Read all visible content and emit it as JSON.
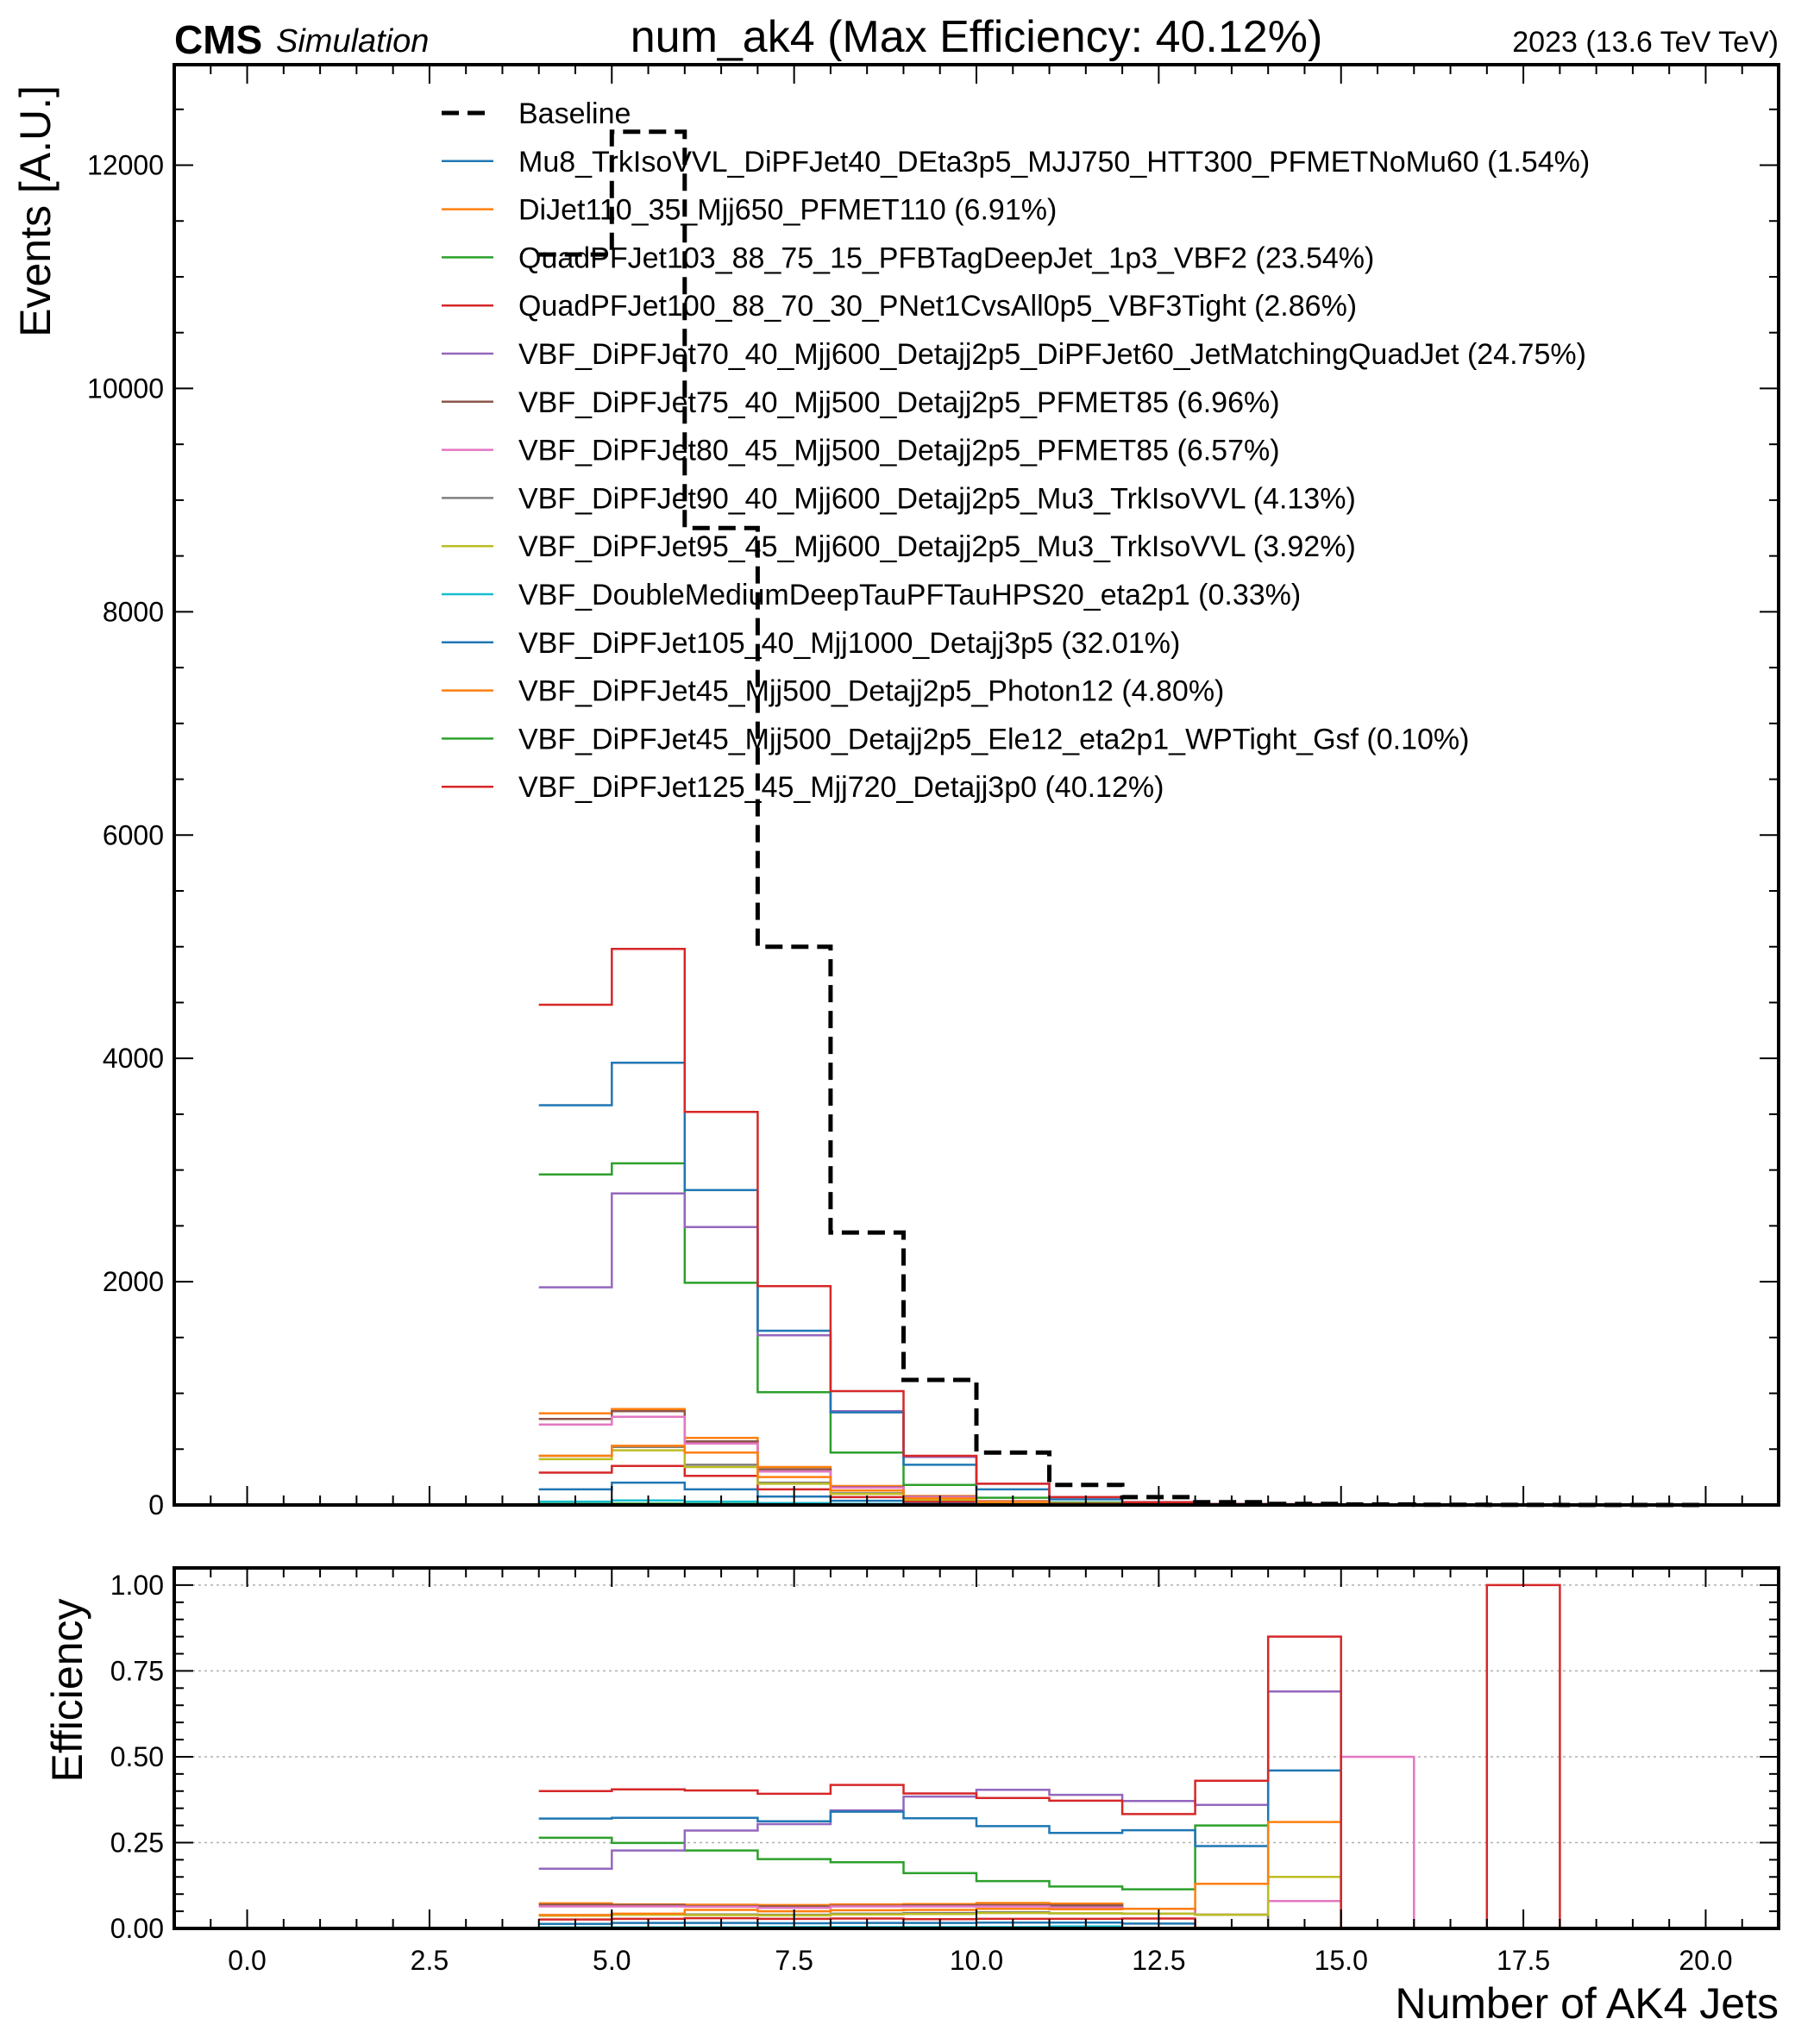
{
  "header": {
    "cms": "CMS",
    "simulation": "Simulation",
    "title": "num_ak4 (Max Efficiency: 40.12%)",
    "energy": "2023 (13.6 TeV TeV)"
  },
  "chart_data": [
    {
      "type": "step",
      "ylabel": "Events [A.U.]",
      "xlim": [
        -1,
        21
      ],
      "ylim": [
        0,
        12900
      ],
      "yticks": [
        0,
        2000,
        4000,
        6000,
        8000,
        10000,
        12000
      ],
      "ytick_labels": [
        "0",
        "2000",
        "4000",
        "6000",
        "8000",
        "10000",
        "12000"
      ],
      "bin_edges": [
        4,
        5,
        6,
        7,
        8,
        9,
        10,
        11,
        12,
        13,
        14,
        15,
        16,
        17,
        18,
        19,
        20
      ],
      "legend_placement": "top-center",
      "baseline": {
        "name": "Baseline",
        "color": "#000000",
        "values": [
          11200,
          12300,
          8750,
          5000,
          2440,
          1120,
          470,
          180,
          70,
          25,
          10,
          5,
          2,
          1,
          0,
          0
        ]
      },
      "series": [
        {
          "name": "Mu8_TrkIsoVVL_DiPFJet40_DEta3p5_MJJ750_HTT300_PFMETNoMu60 (1.54%)",
          "color": "#1f77b4",
          "values": [
            140,
            200,
            140,
            75,
            38,
            18,
            8,
            3,
            1,
            0,
            0,
            0,
            0,
            0,
            0,
            0
          ]
        },
        {
          "name": "DiJet110_35_Mjj650_PFMET110 (6.91%)",
          "color": "#ff7f0e",
          "values": [
            820,
            860,
            600,
            340,
            170,
            80,
            35,
            13,
            4,
            1,
            0,
            0,
            0,
            0,
            0,
            0
          ]
        },
        {
          "name": "QuadPFJet103_88_75_15_PFBTagDeepJet_1p3_VBF2 (23.54%)",
          "color": "#2ca02c",
          "values": [
            2960,
            3060,
            1990,
            1010,
            470,
            180,
            65,
            22,
            8,
            3,
            1,
            0,
            0,
            0,
            0,
            0
          ]
        },
        {
          "name": "QuadPFJet100_88_70_30_PNet1CvsAll0p5_VBF3Tight (2.86%)",
          "color": "#d62728",
          "values": [
            290,
            350,
            260,
            140,
            70,
            30,
            13,
            5,
            2,
            0,
            0,
            0,
            0,
            0,
            0,
            0
          ]
        },
        {
          "name": "VBF_DiPFJet70_40_Mjj600_Detajj2p5_DiPFJet60_JetMatchingQuadJet (24.75%)",
          "color": "#9467bd",
          "values": [
            1950,
            2790,
            2490,
            1520,
            840,
            430,
            190,
            70,
            26,
            9,
            7,
            0,
            0,
            0,
            0,
            0
          ]
        },
        {
          "name": "VBF_DiPFJet75_40_Mjj500_Detajj2p5_PFMET85 (6.96%)",
          "color": "#8c564b",
          "values": [
            770,
            840,
            570,
            320,
            160,
            75,
            32,
            12,
            4,
            1,
            0,
            0,
            0,
            0,
            0,
            0
          ]
        },
        {
          "name": "VBF_DiPFJet80_45_Mjj500_Detajj2p5_PFMET85 (6.57%)",
          "color": "#e377c2",
          "values": [
            720,
            790,
            550,
            300,
            155,
            72,
            30,
            11,
            4,
            1,
            1,
            2,
            0,
            0,
            0,
            0
          ]
        },
        {
          "name": "VBF_DiPFJet90_40_Mjj600_Detajj2p5_Mu3_TrkIsoVVL (4.13%)",
          "color": "#7f7f7f",
          "values": [
            440,
            520,
            360,
            200,
            105,
            50,
            22,
            8,
            3,
            1,
            0,
            0,
            0,
            0,
            0,
            0
          ]
        },
        {
          "name": "VBF_DiPFJet95_45_Mjj600_Detajj2p5_Mu3_TrkIsoVVL (3.92%)",
          "color": "#bcbd22",
          "values": [
            410,
            490,
            340,
            190,
            100,
            47,
            21,
            8,
            3,
            1,
            1,
            0,
            0,
            0,
            0,
            0
          ]
        },
        {
          "name": "VBF_DoubleMediumDeepTauPFTauHPS20_eta2p1 (0.33%)",
          "color": "#17becf",
          "values": [
            30,
            40,
            30,
            18,
            9,
            4,
            2,
            1,
            0,
            0,
            0,
            0,
            0,
            0,
            0,
            0
          ]
        },
        {
          "name": "VBF_DiPFJet105_40_Mjj1000_Detajj3p5 (32.01%)",
          "color": "#1f77b4",
          "values": [
            3580,
            3960,
            2820,
            1560,
            830,
            360,
            140,
            50,
            20,
            6,
            4,
            0,
            0,
            0,
            0,
            0
          ]
        },
        {
          "name": "VBF_DiPFJet45_Mjj500_Detajj2p5_Photon12 (4.80%)",
          "color": "#ff7f0e",
          "values": [
            440,
            530,
            470,
            250,
            130,
            60,
            27,
            10,
            4,
            1,
            2,
            0,
            0,
            0,
            0,
            0
          ]
        },
        {
          "name": "VBF_DiPFJet45_Mjj500_Detajj2p5_Ele12_eta2p1_WPTight_Gsf (0.10%)",
          "color": "#2ca02c",
          "values": [
            10,
            12,
            9,
            5,
            3,
            1,
            1,
            0,
            0,
            0,
            0,
            0,
            0,
            0,
            0,
            0
          ]
        },
        {
          "name": "VBF_DiPFJet125_45_Mjj720_Detajj3p0 (40.12%)",
          "color": "#d62728",
          "values": [
            4480,
            4980,
            3520,
            1960,
            1020,
            440,
            190,
            70,
            25,
            8,
            7,
            0,
            0,
            1,
            0,
            0
          ]
        }
      ]
    },
    {
      "type": "step",
      "xlabel": "Number of AK4 Jets",
      "ylabel": "Efficiency",
      "xlim": [
        -1,
        21
      ],
      "ylim": [
        0,
        1.05
      ],
      "grid": true,
      "xticks": [
        0,
        2.5,
        5,
        7.5,
        10,
        12.5,
        15,
        17.5,
        20
      ],
      "xtick_labels": [
        "0.0",
        "2.5",
        "5.0",
        "7.5",
        "10.0",
        "12.5",
        "15.0",
        "17.5",
        "20.0"
      ],
      "yticks": [
        0,
        0.25,
        0.5,
        0.75,
        1.0
      ],
      "ytick_labels": [
        "0.00",
        "0.25",
        "0.50",
        "0.75",
        "1.00"
      ],
      "bin_edges": [
        4,
        5,
        6,
        7,
        8,
        9,
        10,
        11,
        12,
        13,
        14,
        15,
        16,
        17,
        18,
        19,
        20
      ],
      "series": [
        {
          "color": "#1f77b4",
          "values": [
            0.013,
            0.016,
            0.016,
            0.015,
            0.016,
            0.016,
            0.017,
            0.017,
            0.014,
            0,
            0,
            0,
            0,
            0,
            0,
            0
          ]
        },
        {
          "color": "#ff7f0e",
          "values": [
            0.073,
            0.07,
            0.069,
            0.068,
            0.07,
            0.071,
            0.074,
            0.072,
            0.057,
            0.04,
            0,
            0,
            0,
            0,
            0,
            0
          ]
        },
        {
          "color": "#2ca02c",
          "values": [
            0.264,
            0.249,
            0.227,
            0.202,
            0.193,
            0.161,
            0.138,
            0.122,
            0.114,
            0.3,
            0,
            0,
            0,
            0,
            0,
            0
          ]
        },
        {
          "color": "#d62728",
          "values": [
            0.026,
            0.028,
            0.03,
            0.028,
            0.029,
            0.027,
            0.028,
            0.028,
            0.029,
            0,
            0,
            0,
            0,
            0,
            0,
            0
          ]
        },
        {
          "color": "#9467bd",
          "values": [
            0.174,
            0.227,
            0.285,
            0.304,
            0.344,
            0.384,
            0.404,
            0.389,
            0.371,
            0.36,
            0.69,
            0,
            0,
            0,
            0,
            0
          ]
        },
        {
          "color": "#8c564b",
          "values": [
            0.069,
            0.068,
            0.065,
            0.064,
            0.066,
            0.067,
            0.068,
            0.067,
            0.057,
            0.04,
            0,
            0,
            0,
            0,
            0,
            0
          ]
        },
        {
          "color": "#e377c2",
          "values": [
            0.064,
            0.064,
            0.063,
            0.06,
            0.064,
            0.064,
            0.064,
            0.061,
            0.057,
            0.04,
            0.08,
            0.5,
            0,
            0,
            0,
            0
          ]
        },
        {
          "color": "#7f7f7f",
          "values": [
            0.039,
            0.042,
            0.041,
            0.04,
            0.043,
            0.045,
            0.047,
            0.044,
            0.043,
            0.04,
            0,
            0,
            0,
            0,
            0,
            0
          ]
        },
        {
          "color": "#bcbd22",
          "values": [
            0.037,
            0.04,
            0.039,
            0.038,
            0.041,
            0.042,
            0.045,
            0.044,
            0.043,
            0.04,
            0.15,
            0,
            0,
            0,
            0,
            0
          ]
        },
        {
          "color": "#17becf",
          "values": [
            0.003,
            0.003,
            0.003,
            0.004,
            0.004,
            0.004,
            0.004,
            0.006,
            0,
            0,
            0,
            0,
            0,
            0,
            0,
            0
          ]
        },
        {
          "color": "#1f77b4",
          "values": [
            0.32,
            0.322,
            0.322,
            0.312,
            0.34,
            0.321,
            0.298,
            0.278,
            0.286,
            0.24,
            0.46,
            0,
            0,
            0,
            0,
            0
          ]
        },
        {
          "color": "#ff7f0e",
          "values": [
            0.039,
            0.043,
            0.054,
            0.05,
            0.053,
            0.054,
            0.057,
            0.056,
            0.057,
            0.13,
            0.31,
            0,
            0,
            0,
            0,
            0
          ]
        },
        {
          "color": "#2ca02c",
          "values": [
            0.001,
            0.001,
            0.001,
            0.001,
            0.001,
            0.001,
            0.002,
            0,
            0,
            0,
            0,
            0,
            0,
            0,
            0,
            0
          ]
        },
        {
          "color": "#d62728",
          "values": [
            0.4,
            0.405,
            0.402,
            0.392,
            0.418,
            0.393,
            0.38,
            0.372,
            0.333,
            0.43,
            0.85,
            0,
            0,
            1.0,
            0,
            0
          ]
        }
      ]
    }
  ]
}
